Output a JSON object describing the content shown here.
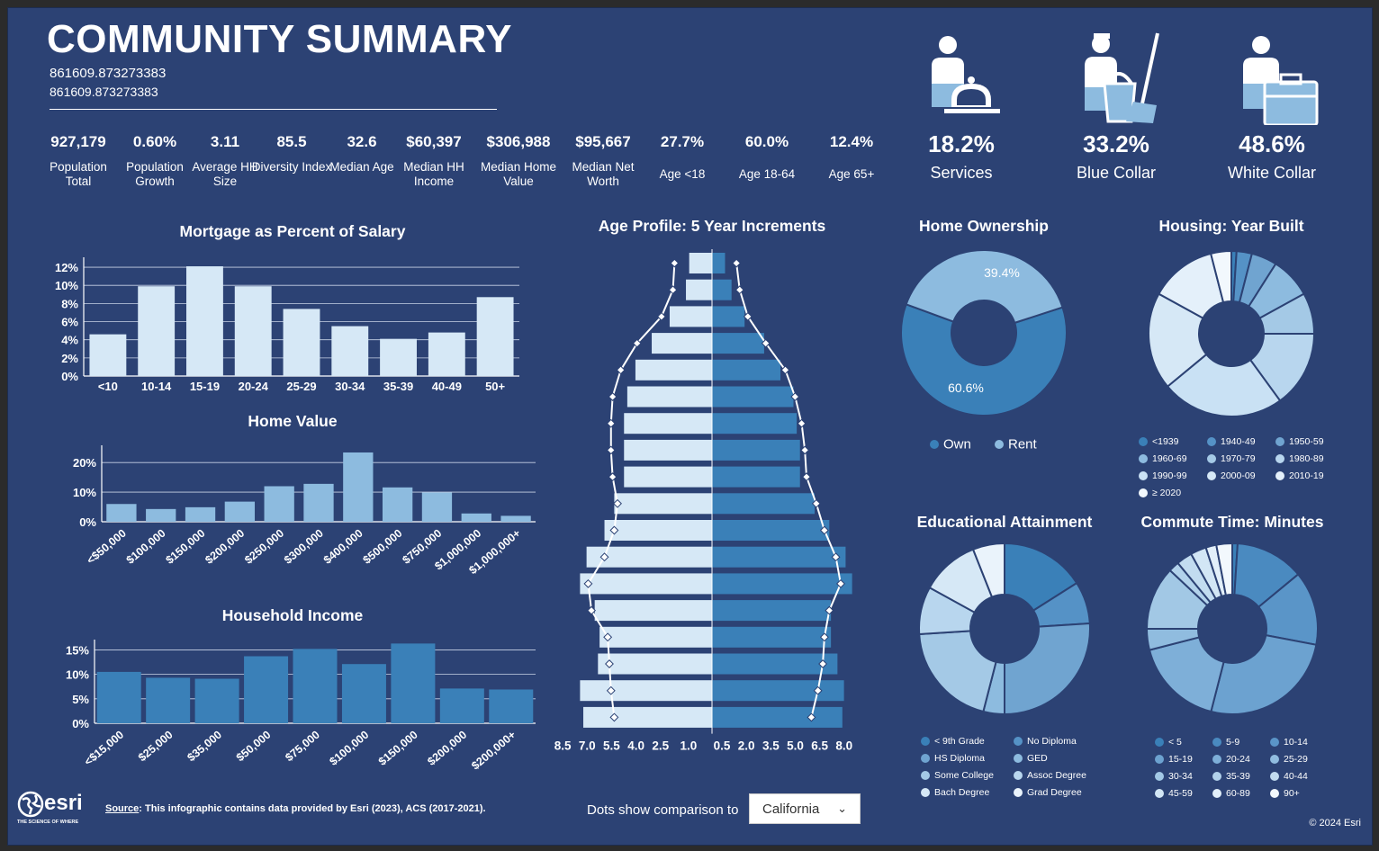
{
  "header": {
    "title": "COMMUNITY SUMMARY",
    "subtitle_1": "861609.873273383",
    "subtitle_2": "861609.873273383"
  },
  "stats": [
    {
      "value": "927,179",
      "label": "Population Total"
    },
    {
      "value": "0.60%",
      "label": "Population Growth"
    },
    {
      "value": "3.11",
      "label": "Average HH Size"
    },
    {
      "value": "85.5",
      "label": "Diversity Index"
    },
    {
      "value": "32.6",
      "label": "Median Age"
    },
    {
      "value": "$60,397",
      "label": "Median HH Income"
    },
    {
      "value": "$306,988",
      "label": "Median Home Value"
    },
    {
      "value": "$95,667",
      "label": "Median Net Worth"
    },
    {
      "value": "27.7%",
      "label": "Age <18"
    },
    {
      "value": "60.0%",
      "label": "Age 18-64"
    },
    {
      "value": "12.4%",
      "label": "Age 65+"
    }
  ],
  "occupations": [
    {
      "value": "18.2%",
      "label": "Services",
      "icon": "services-person-bell-icon"
    },
    {
      "value": "33.2%",
      "label": "Blue Collar",
      "icon": "blue-collar-person-bucket-icon"
    },
    {
      "value": "48.6%",
      "label": "White Collar",
      "icon": "white-collar-person-briefcase-icon"
    }
  ],
  "colors": {
    "background": "#2c4274",
    "light_bar": "#d6e8f6",
    "mid_bar": "#8dbbdf",
    "dark_bar": "#3a80b8"
  },
  "chart_data": [
    {
      "type": "bar",
      "title": "Mortgage as Percent of Salary",
      "categories": [
        "<10",
        "10-14",
        "15-19",
        "20-24",
        "25-29",
        "30-34",
        "35-39",
        "40-49",
        "50+"
      ],
      "values": [
        4.6,
        9.9,
        12.1,
        9.9,
        7.4,
        5.5,
        4.1,
        4.8,
        8.7
      ],
      "yticks": [
        "0%",
        "2%",
        "4%",
        "6%",
        "8%",
        "10%",
        "12%"
      ],
      "ylim": [
        0,
        12.5
      ],
      "color": "#d6e8f6",
      "grid": true
    },
    {
      "type": "bar",
      "title": "Home Value",
      "categories": [
        "<$50,000",
        "$100,000",
        "$150,000",
        "$200,000",
        "$250,000",
        "$300,000",
        "$400,000",
        "$500,000",
        "$750,000",
        "$1,000,000",
        "$1,000,000+"
      ],
      "values": [
        6.0,
        4.3,
        4.9,
        6.8,
        12.0,
        12.8,
        23.4,
        11.6,
        9.9,
        2.8,
        2.0
      ],
      "yticks": [
        "0%",
        "10%",
        "20%"
      ],
      "ylim": [
        0,
        24
      ],
      "color": "#8dbbdf",
      "grid": true
    },
    {
      "type": "bar",
      "title": "Household Income",
      "categories": [
        "<$15,000",
        "$25,000",
        "$35,000",
        "$50,000",
        "$75,000",
        "$100,000",
        "$150,000",
        "$200,000",
        "$200,000+"
      ],
      "values": [
        10.5,
        9.3,
        9.1,
        13.7,
        15.2,
        12.1,
        16.3,
        7.1,
        6.9
      ],
      "yticks": [
        "0%",
        "5%",
        "10%",
        "15%"
      ],
      "ylim": [
        0,
        16
      ],
      "color": "#3a80b8",
      "grid": true
    },
    {
      "type": "bar",
      "title": "Age Profile: 5 Year Increments",
      "orientation": "population-pyramid",
      "left_series": [
        1.4,
        1.6,
        2.6,
        3.7,
        4.7,
        5.2,
        5.4,
        5.4,
        5.4,
        6.0,
        6.6,
        7.7,
        8.1,
        7.2,
        6.9,
        7.0,
        8.1,
        7.9
      ],
      "right_series": [
        0.8,
        1.2,
        2.0,
        3.2,
        4.2,
        5.0,
        5.2,
        5.4,
        5.4,
        6.3,
        7.2,
        8.2,
        8.6,
        7.3,
        7.3,
        7.7,
        8.1,
        8.0
      ],
      "left_comparison": [
        2.3,
        2.4,
        3.1,
        4.6,
        5.6,
        6.1,
        6.2,
        6.2,
        6.1,
        5.8,
        6.0,
        6.6,
        7.6,
        7.4,
        6.4,
        6.3,
        6.2,
        6.0
      ],
      "right_comparison": [
        1.5,
        1.7,
        2.2,
        3.3,
        4.5,
        5.1,
        5.5,
        5.7,
        5.8,
        6.4,
        6.9,
        7.6,
        7.9,
        7.2,
        6.9,
        6.8,
        6.5,
        6.1
      ],
      "xticks_left": [
        "8.5",
        "7.0",
        "5.5",
        "4.0",
        "2.5",
        "1.0"
      ],
      "xticks_right": [
        "0.5",
        "2.0",
        "3.5",
        "5.0",
        "6.5",
        "8.0"
      ],
      "left_color": "#d6e8f6",
      "right_color": "#3a80b8"
    },
    {
      "type": "pie",
      "title": "Home Ownership",
      "labels": [
        "Own",
        "Rent"
      ],
      "values": [
        60.6,
        39.4
      ],
      "value_labels": [
        "60.6%",
        "39.4%"
      ],
      "colors": [
        "#3a80b8",
        "#8dbbdf"
      ]
    },
    {
      "type": "pie",
      "title": "Housing: Year Built",
      "labels": [
        "<1939",
        "1940-49",
        "1950-59",
        "1960-69",
        "1970-79",
        "1980-89",
        "1990-99",
        "2000-09",
        "2010-19",
        "≥ 2020"
      ],
      "values": [
        1,
        3,
        5,
        8,
        8,
        15,
        24,
        19,
        13,
        4
      ],
      "colors": [
        "#3a80b8",
        "#5592c6",
        "#70a4d0",
        "#8dbbdf",
        "#a4c9e6",
        "#b8d6ee",
        "#c9e1f4",
        "#d6e8f6",
        "#e4f0fa",
        "#f2f8fd"
      ]
    },
    {
      "type": "pie",
      "title": "Educational Attainment",
      "labels": [
        "< 9th Grade",
        "No Diploma",
        "HS Diploma",
        "GED",
        "Some College",
        "Assoc Degree",
        "Bach Degree",
        "Grad Degree"
      ],
      "values": [
        16,
        8,
        26,
        4,
        20,
        9,
        11,
        6
      ],
      "colors": [
        "#3a80b8",
        "#5592c6",
        "#70a4d0",
        "#8dbbdf",
        "#a4c9e6",
        "#b8d6ee",
        "#d6e8f6",
        "#eaf3fb"
      ]
    },
    {
      "type": "pie",
      "title": "Commute Time: Minutes",
      "labels": [
        "< 5",
        "5-9",
        "10-14",
        "15-19",
        "20-24",
        "25-29",
        "30-34",
        "35-39",
        "40-44",
        "45-59",
        "60-89",
        "90+"
      ],
      "values": [
        1,
        13,
        14,
        26,
        17,
        4,
        12,
        2,
        3,
        3,
        2,
        3
      ],
      "colors": [
        "#3a80b8",
        "#4a8ac0",
        "#5a95c8",
        "#6ca2d0",
        "#7eafd8",
        "#90bcdf",
        "#a2c8e5",
        "#b2d2eb",
        "#c2dcf0",
        "#d2e6f5",
        "#e2eff9",
        "#f2f8fd"
      ]
    }
  ],
  "home_ownership_legend": [
    "Own",
    "Rent"
  ],
  "footer": {
    "source_label": "Source",
    "source_text": ": This infographic contains data provided by Esri (2023), ACS (2017-2021).",
    "dots_label": "Dots show comparison to",
    "comparison_selected": "California",
    "copyright": "© 2024 Esri",
    "logo_text": "esri",
    "logo_tagline": "THE SCIENCE OF WHERE"
  }
}
